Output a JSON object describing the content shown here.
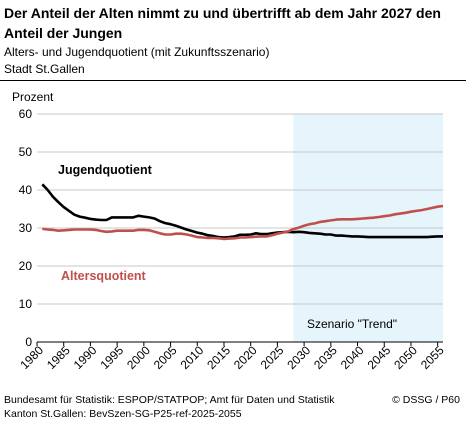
{
  "header": {
    "title": "Der Anteil der Alten nimmt zu und übertrifft ab dem Jahr 2027 den Anteil der Jungen",
    "subtitle": "Alters- und Jugendquotient (mit Zukunftsszenario)",
    "subtitle2": "Stadt St.Gallen"
  },
  "footer": {
    "source": "Bundesamt für Statistik: ESPOP/STATPOP; Amt für Daten und Statistik Kanton St.Gallen: BevSzen-SG-P25-ref-2025-2055",
    "copyright": "© DSSG / P60"
  },
  "colors": {
    "jugend": "#000000",
    "alter": "#c0504d",
    "scenario_bg": "#e6f4fc",
    "grid": "#c8c8c8"
  },
  "chart_data": {
    "type": "line",
    "ylabel": "Prozent",
    "ylim": [
      0,
      60
    ],
    "yticks": [
      0,
      10,
      20,
      30,
      40,
      50,
      60
    ],
    "xlim": [
      1980,
      2056
    ],
    "xticks": [
      1980,
      1985,
      1990,
      1995,
      2000,
      2005,
      2010,
      2015,
      2020,
      2025,
      2030,
      2035,
      2040,
      2045,
      2050,
      2055
    ],
    "grid": "horizontal",
    "scenario": {
      "start": 2028,
      "end": 2056,
      "label": "Szenario \"Trend\""
    },
    "series": [
      {
        "name": "Jugendquotient",
        "color": "#000000",
        "x": [
          1981,
          1982,
          1983,
          1984,
          1985,
          1986,
          1987,
          1988,
          1989,
          1990,
          1991,
          1992,
          1993,
          1994,
          1995,
          1996,
          1997,
          1998,
          1999,
          2000,
          2001,
          2002,
          2003,
          2004,
          2005,
          2006,
          2007,
          2008,
          2009,
          2010,
          2011,
          2012,
          2013,
          2014,
          2015,
          2016,
          2017,
          2018,
          2019,
          2020,
          2021,
          2022,
          2023,
          2024,
          2025,
          2026,
          2027,
          2028,
          2029,
          2030,
          2031,
          2032,
          2033,
          2034,
          2035,
          2036,
          2037,
          2038,
          2039,
          2040,
          2041,
          2042,
          2043,
          2044,
          2045,
          2046,
          2047,
          2048,
          2049,
          2050,
          2051,
          2052,
          2053,
          2054,
          2055,
          2056
        ],
        "values": [
          41.5,
          40.0,
          38.2,
          36.8,
          35.5,
          34.5,
          33.5,
          33.0,
          32.7,
          32.4,
          32.2,
          32.1,
          32.1,
          32.8,
          32.8,
          32.8,
          32.8,
          32.8,
          33.2,
          33.0,
          32.8,
          32.5,
          31.8,
          31.3,
          31.0,
          30.6,
          30.1,
          29.6,
          29.2,
          28.8,
          28.5,
          28.1,
          27.9,
          27.6,
          27.5,
          27.6,
          27.8,
          28.2,
          28.2,
          28.3,
          28.6,
          28.4,
          28.4,
          28.6,
          28.8,
          28.9,
          29.0,
          28.9,
          29.0,
          28.9,
          28.7,
          28.6,
          28.5,
          28.3,
          28.3,
          28.0,
          28.0,
          27.9,
          27.8,
          27.8,
          27.7,
          27.6,
          27.6,
          27.6,
          27.6,
          27.6,
          27.6,
          27.6,
          27.6,
          27.6,
          27.6,
          27.6,
          27.6,
          27.7,
          27.8,
          27.8
        ]
      },
      {
        "name": "Altersquotient",
        "color": "#c0504d",
        "x": [
          1981,
          1982,
          1983,
          1984,
          1985,
          1986,
          1987,
          1988,
          1989,
          1990,
          1991,
          1992,
          1993,
          1994,
          1995,
          1996,
          1997,
          1998,
          1999,
          2000,
          2001,
          2002,
          2003,
          2004,
          2005,
          2006,
          2007,
          2008,
          2009,
          2010,
          2011,
          2012,
          2013,
          2014,
          2015,
          2016,
          2017,
          2018,
          2019,
          2020,
          2021,
          2022,
          2023,
          2024,
          2025,
          2026,
          2027,
          2028,
          2029,
          2030,
          2031,
          2032,
          2033,
          2034,
          2035,
          2036,
          2037,
          2038,
          2039,
          2040,
          2041,
          2042,
          2043,
          2044,
          2045,
          2046,
          2047,
          2048,
          2049,
          2050,
          2051,
          2052,
          2053,
          2054,
          2055,
          2056
        ],
        "values": [
          29.8,
          29.6,
          29.5,
          29.3,
          29.4,
          29.5,
          29.6,
          29.6,
          29.6,
          29.6,
          29.5,
          29.2,
          29.0,
          29.1,
          29.3,
          29.3,
          29.3,
          29.3,
          29.5,
          29.5,
          29.4,
          29.0,
          28.6,
          28.3,
          28.3,
          28.5,
          28.5,
          28.3,
          28.0,
          27.6,
          27.5,
          27.4,
          27.4,
          27.3,
          27.1,
          27.2,
          27.3,
          27.5,
          27.5,
          27.6,
          27.7,
          27.8,
          27.8,
          28.1,
          28.5,
          28.8,
          29.1,
          29.7,
          30.1,
          30.6,
          31.0,
          31.2,
          31.6,
          31.8,
          32.0,
          32.2,
          32.3,
          32.3,
          32.3,
          32.4,
          32.5,
          32.6,
          32.7,
          32.9,
          33.1,
          33.3,
          33.6,
          33.8,
          34.0,
          34.3,
          34.5,
          34.7,
          35.0,
          35.3,
          35.6,
          35.8
        ]
      }
    ]
  }
}
